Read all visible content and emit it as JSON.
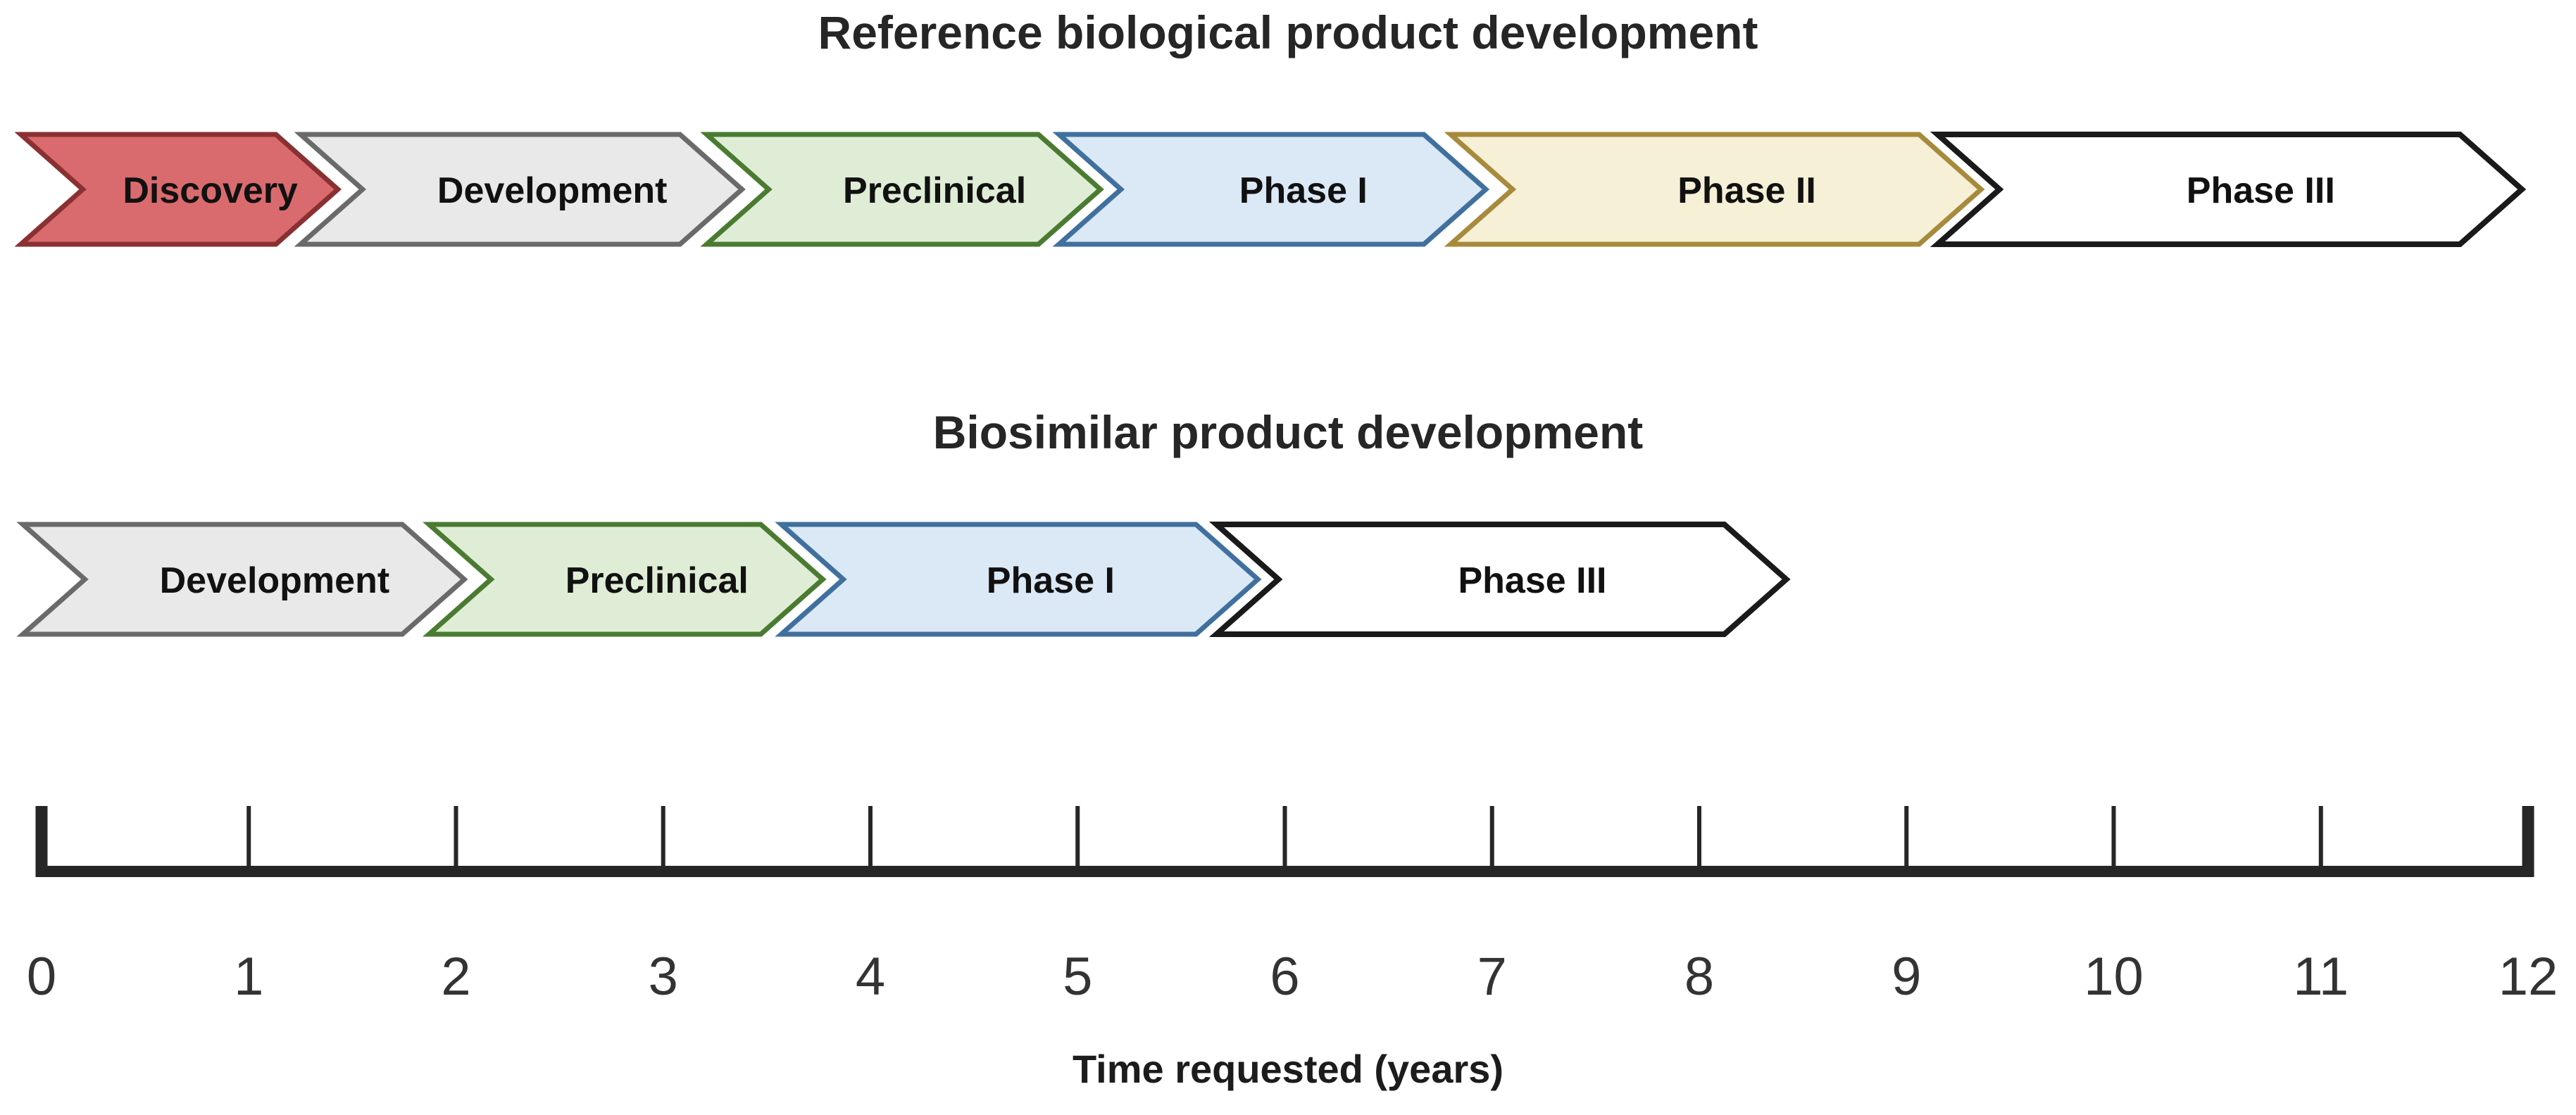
{
  "rows": [
    {
      "id": "reference",
      "title": "Reference biological product development",
      "phases": [
        {
          "label": "Discovery",
          "start_year": -0.1,
          "end_year": 1.43,
          "fill": "#D96B6E",
          "stroke": "#8A3033"
        },
        {
          "label": "Development",
          "start_year": 1.25,
          "end_year": 3.38,
          "fill": "#E9E9E9",
          "stroke": "#6A6A6A"
        },
        {
          "label": "Preclinical",
          "start_year": 3.21,
          "end_year": 5.11,
          "fill": "#DFEDD6",
          "stroke": "#4A7B31"
        },
        {
          "label": "Phase I",
          "start_year": 4.91,
          "end_year": 6.97,
          "fill": "#DBE8F6",
          "stroke": "#40709E"
        },
        {
          "label": "Phase II",
          "start_year": 6.8,
          "end_year": 9.36,
          "fill": "#F5F0D6",
          "stroke": "#A78A3B"
        },
        {
          "label": "Phase III",
          "start_year": 9.15,
          "end_year": 11.97,
          "fill": "#FFFFFF",
          "stroke": "#1A1A1A"
        }
      ]
    },
    {
      "id": "biosimilar",
      "title": "Biosimilar product development",
      "phases": [
        {
          "label": "Development",
          "start_year": -0.09,
          "end_year": 2.04,
          "fill": "#E9E9E9",
          "stroke": "#6A6A6A"
        },
        {
          "label": "Preclinical",
          "start_year": 1.87,
          "end_year": 3.77,
          "fill": "#DFEDD6",
          "stroke": "#4A7B31"
        },
        {
          "label": "Phase I",
          "start_year": 3.57,
          "end_year": 5.87,
          "fill": "#DBE8F6",
          "stroke": "#40709E"
        },
        {
          "label": "Phase III",
          "start_year": 5.67,
          "end_year": 8.42,
          "fill": "#FFFFFF",
          "stroke": "#1A1A1A"
        }
      ]
    }
  ],
  "axis": {
    "label": "Time requested (years)",
    "min": 0,
    "max": 12,
    "ticks": [
      0,
      1,
      2,
      3,
      4,
      5,
      6,
      7,
      8,
      9,
      10,
      11,
      12
    ],
    "line_color": "#262626",
    "number_color": "#333333"
  },
  "colors": {
    "discovery_fill": "#D96B6E",
    "discovery_stroke": "#8A3033",
    "development_fill": "#E9E9E9",
    "development_stroke": "#6A6A6A",
    "preclinical_fill": "#DFEDD6",
    "preclinical_stroke": "#4A7B31",
    "phase1_fill": "#DBE8F6",
    "phase1_stroke": "#40709E",
    "phase2_fill": "#F5F0D6",
    "phase2_stroke": "#A78A3B",
    "phase3_fill": "#FFFFFF",
    "phase3_stroke": "#1A1A1A",
    "title_text": "#262626",
    "phase_text": "#111111"
  }
}
